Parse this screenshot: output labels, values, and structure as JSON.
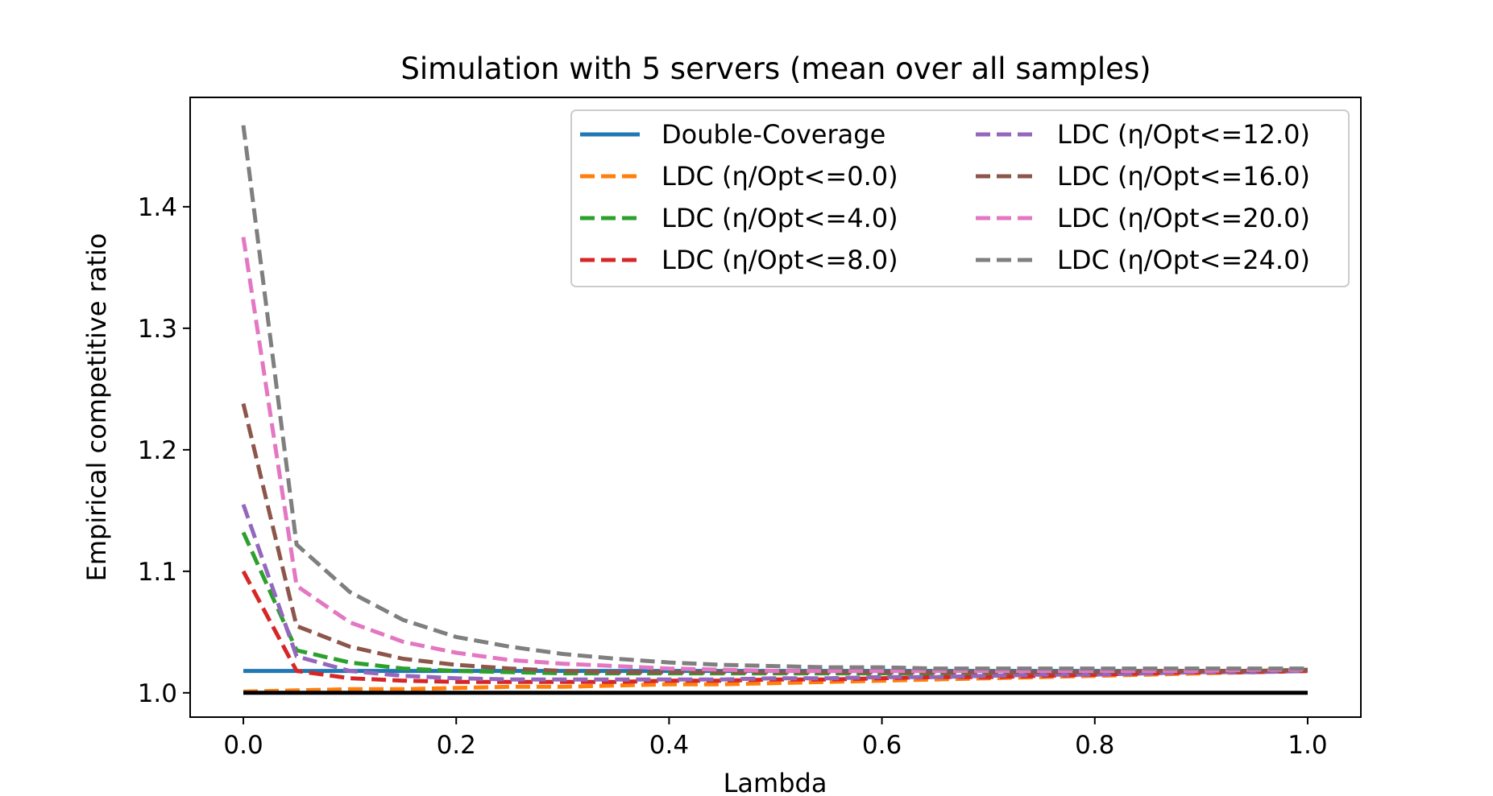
{
  "chart_data": {
    "type": "line",
    "title": "Simulation with 5 servers (mean over all samples)",
    "xlabel": "Lambda",
    "ylabel": "Empirical competitive ratio",
    "xlim": [
      -0.05,
      1.05
    ],
    "ylim": [
      0.98,
      1.49
    ],
    "xticks": [
      "0.0",
      "0.2",
      "0.4",
      "0.6",
      "0.8",
      "1.0"
    ],
    "xtick_values": [
      0.0,
      0.2,
      0.4,
      0.6,
      0.8,
      1.0
    ],
    "yticks": [
      "1.0",
      "1.1",
      "1.2",
      "1.3",
      "1.4"
    ],
    "ytick_values": [
      1.0,
      1.1,
      1.2,
      1.3,
      1.4
    ],
    "grid": false,
    "legend_placement": "top-right",
    "legend_columns": 2,
    "x": [
      0.0,
      0.05,
      0.1,
      0.15,
      0.2,
      0.25,
      0.3,
      0.35,
      0.4,
      0.45,
      0.5,
      0.55,
      0.6,
      0.65,
      0.7,
      0.75,
      0.8,
      0.85,
      0.9,
      0.95,
      1.0
    ],
    "series": [
      {
        "name": "Double-Coverage",
        "color": "#1f77b4",
        "dash": "solid",
        "values": [
          1.018,
          1.018,
          1.018,
          1.018,
          1.018,
          1.018,
          1.018,
          1.018,
          1.018,
          1.018,
          1.018,
          1.018,
          1.018,
          1.018,
          1.018,
          1.018,
          1.018,
          1.018,
          1.018,
          1.018,
          1.018
        ]
      },
      {
        "name": "LDC (η/Opt<=0.0)",
        "color": "#ff7f0e",
        "dash": "dashed",
        "values": [
          1.001,
          1.002,
          1.003,
          1.003,
          1.004,
          1.005,
          1.005,
          1.006,
          1.007,
          1.007,
          1.008,
          1.009,
          1.01,
          1.011,
          1.012,
          1.013,
          1.014,
          1.015,
          1.016,
          1.017,
          1.018
        ]
      },
      {
        "name": "LDC (η/Opt<=4.0)",
        "color": "#2ca02c",
        "dash": "dashed",
        "values": [
          1.132,
          1.035,
          1.025,
          1.02,
          1.018,
          1.017,
          1.016,
          1.016,
          1.016,
          1.016,
          1.016,
          1.016,
          1.016,
          1.016,
          1.016,
          1.017,
          1.017,
          1.017,
          1.018,
          1.018,
          1.018
        ]
      },
      {
        "name": "LDC (η/Opt<=8.0)",
        "color": "#d62728",
        "dash": "dashed",
        "values": [
          1.1,
          1.018,
          1.012,
          1.01,
          1.009,
          1.009,
          1.009,
          1.009,
          1.01,
          1.01,
          1.011,
          1.011,
          1.012,
          1.013,
          1.013,
          1.014,
          1.015,
          1.016,
          1.017,
          1.017,
          1.018
        ]
      },
      {
        "name": "LDC (η/Opt<=12.0)",
        "color": "#9467bd",
        "dash": "dashed",
        "values": [
          1.155,
          1.03,
          1.018,
          1.014,
          1.012,
          1.011,
          1.011,
          1.011,
          1.011,
          1.011,
          1.012,
          1.012,
          1.013,
          1.013,
          1.014,
          1.015,
          1.015,
          1.016,
          1.017,
          1.017,
          1.018
        ]
      },
      {
        "name": "LDC (η/Opt<=16.0)",
        "color": "#8c564b",
        "dash": "dashed",
        "values": [
          1.238,
          1.055,
          1.038,
          1.028,
          1.023,
          1.02,
          1.018,
          1.017,
          1.017,
          1.017,
          1.017,
          1.017,
          1.017,
          1.017,
          1.017,
          1.017,
          1.017,
          1.018,
          1.018,
          1.018,
          1.019
        ]
      },
      {
        "name": "LDC (η/Opt<=20.0)",
        "color": "#e377c2",
        "dash": "dashed",
        "values": [
          1.375,
          1.088,
          1.058,
          1.042,
          1.033,
          1.027,
          1.024,
          1.022,
          1.02,
          1.019,
          1.018,
          1.018,
          1.018,
          1.018,
          1.018,
          1.018,
          1.018,
          1.018,
          1.018,
          1.019,
          1.019
        ]
      },
      {
        "name": "LDC (η/Opt<=24.0)",
        "color": "#7f7f7f",
        "dash": "dashed",
        "values": [
          1.467,
          1.122,
          1.083,
          1.06,
          1.046,
          1.038,
          1.032,
          1.028,
          1.025,
          1.023,
          1.022,
          1.021,
          1.021,
          1.02,
          1.02,
          1.02,
          1.02,
          1.02,
          1.02,
          1.02,
          1.02
        ]
      },
      {
        "name": "",
        "color": "#000000",
        "dash": "solid",
        "values": [
          1.0,
          1.0,
          1.0,
          1.0,
          1.0,
          1.0,
          1.0,
          1.0,
          1.0,
          1.0,
          1.0,
          1.0,
          1.0,
          1.0,
          1.0,
          1.0,
          1.0,
          1.0,
          1.0,
          1.0,
          1.0
        ]
      }
    ]
  }
}
